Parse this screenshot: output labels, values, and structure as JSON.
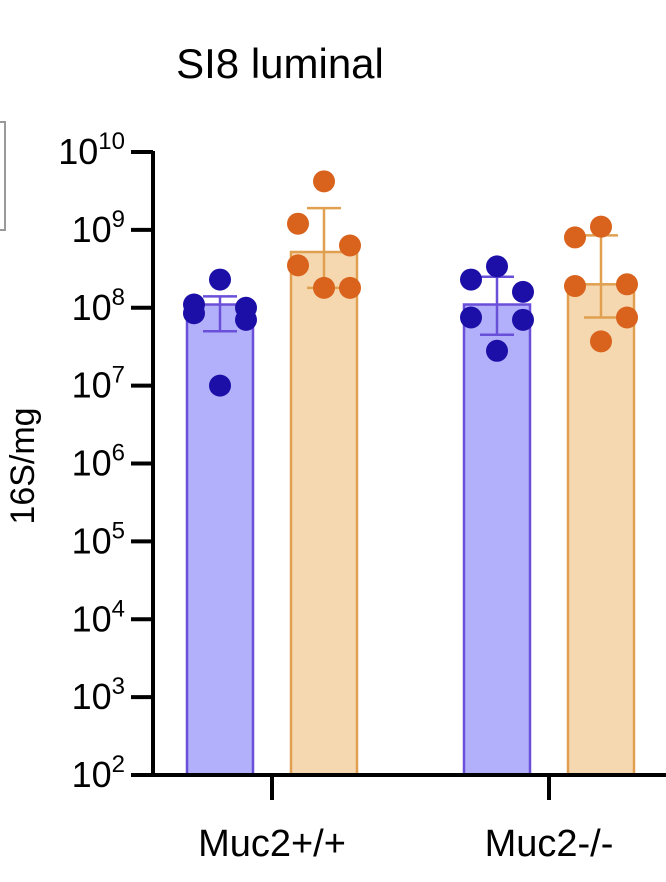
{
  "chart_data": {
    "type": "bar",
    "title": "SI8 luminal",
    "ylabel": "16S/mg",
    "xlabel": "",
    "yscale": "log",
    "ylim": [
      100,
      10000000000
    ],
    "y_tick_labels": [
      {
        "base": "10",
        "exp": "2"
      },
      {
        "base": "10",
        "exp": "3"
      },
      {
        "base": "10",
        "exp": "4"
      },
      {
        "base": "10",
        "exp": "5"
      },
      {
        "base": "10",
        "exp": "6"
      },
      {
        "base": "10",
        "exp": "7"
      },
      {
        "base": "10",
        "exp": "8"
      },
      {
        "base": "10",
        "exp": "9"
      },
      {
        "base": "10",
        "exp": "10"
      }
    ],
    "categories": [
      "Muc2+/+",
      "Muc2-/-"
    ],
    "grid": false,
    "series": [
      {
        "color_fill": "#b3b0fb",
        "color_edge": "#6a4fd8",
        "color_point": "#1c0fa8",
        "means": [
          110000000,
          110000000
        ],
        "err_low": [
          50000000,
          45000000
        ],
        "err_high": [
          140000000,
          250000000
        ],
        "points": [
          [
            230000000,
            110000000,
            100000000,
            85000000,
            70000000,
            10000000
          ],
          [
            340000000,
            230000000,
            160000000,
            75000000,
            70000000,
            28000000
          ]
        ]
      },
      {
        "color_fill": "#f5d8b0",
        "color_edge": "#e0a050",
        "color_point": "#d9621d",
        "means": [
          520000000,
          200000000
        ],
        "err_low": [
          180000000,
          75000000
        ],
        "err_high": [
          1900000000,
          850000000
        ],
        "points": [
          [
            4200000000,
            1200000000,
            630000000,
            350000000,
            180000000,
            180000000
          ],
          [
            1100000000,
            800000000,
            200000000,
            190000000,
            75000000,
            37000000
          ]
        ]
      }
    ]
  }
}
